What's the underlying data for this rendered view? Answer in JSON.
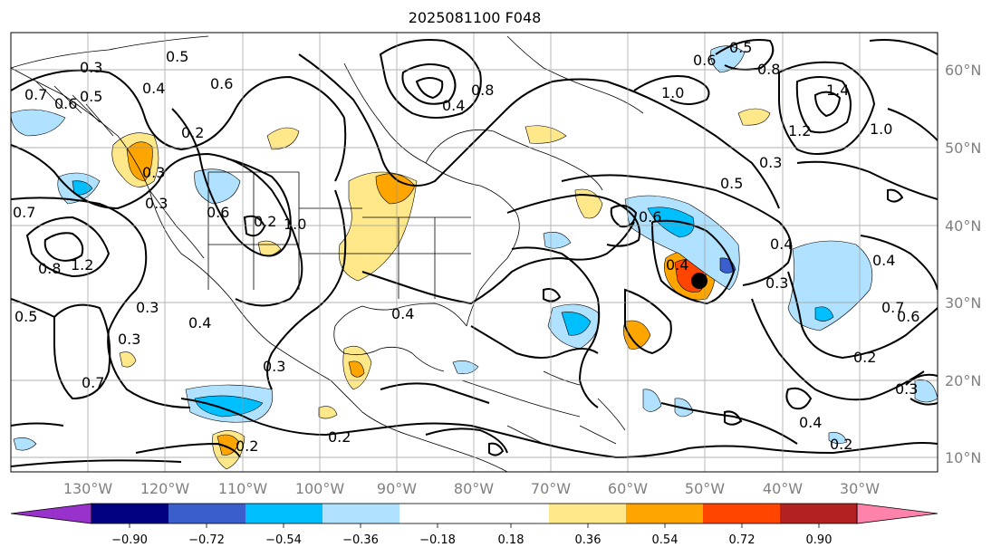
{
  "title": "2025081100 F048",
  "map": {
    "lon_labels": [
      "130°W",
      "120°W",
      "110°W",
      "100°W",
      "90°W",
      "80°W",
      "70°W",
      "60°W",
      "50°W",
      "40°W",
      "30°W"
    ],
    "lat_labels": [
      "60°N",
      "50°N",
      "40°N",
      "30°N",
      "20°N",
      "10°N"
    ],
    "contour_labels": [
      "0.3",
      "0.2",
      "0.4",
      "0.6",
      "0.5",
      "0.2",
      "0.3",
      "0.7",
      "0.8",
      "1.2",
      "1.0",
      "0.3",
      "0.5",
      "0.4",
      "0.4",
      "0.2",
      "0.7",
      "0.6",
      "0.5",
      "0.3",
      "0.8",
      "0.6",
      "0.4",
      "0.5",
      "0.4",
      "0.7",
      "0.6",
      "0.3",
      "0.5",
      "0.3",
      "0.8",
      "1.0",
      "0.6",
      "1.2",
      "1.4",
      "1.0",
      "0.3",
      "0.4",
      "0.3",
      "0.7",
      "0.6",
      "0.3",
      "0.4",
      "0.2",
      "0.4",
      "0.2",
      "0.2"
    ]
  },
  "colorbar": {
    "tick_labels": [
      "−0.90",
      "−0.72",
      "−0.54",
      "−0.36",
      "−0.18",
      "0.18",
      "0.36",
      "0.54",
      "0.72",
      "0.90"
    ],
    "colors": [
      "#9932cc",
      "#000080",
      "#3a5fcd",
      "#00bfff",
      "#b0e2ff",
      "#ffffff",
      "#ffe88a",
      "#ffa500",
      "#ff4500",
      "#b22222",
      "#ff82ab"
    ]
  },
  "marker_color": "#000000"
}
